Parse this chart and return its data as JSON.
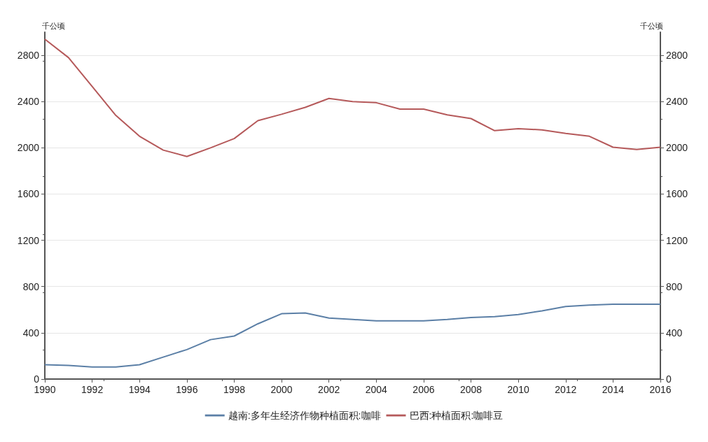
{
  "chart_data": {
    "type": "line",
    "ylabel": "千公顷",
    "y2label": "千公顷",
    "x": [
      1990,
      1991,
      1992,
      1993,
      1994,
      1995,
      1996,
      1997,
      1998,
      1999,
      2000,
      2001,
      2002,
      2003,
      2004,
      2005,
      2006,
      2007,
      2008,
      2009,
      2010,
      2011,
      2012,
      2013,
      2014,
      2015,
      2016
    ],
    "series": [
      {
        "name": "越南:多年生经济作物种植面积:咖啡",
        "color": "#5b7fa6",
        "values": [
          124,
          118,
          105,
          105,
          124,
          190,
          255,
          341,
          372,
          478,
          565,
          571,
          528,
          515,
          503,
          503,
          503,
          515,
          532,
          540,
          558,
          590,
          627,
          640,
          647,
          647,
          647
        ]
      },
      {
        "name": "巴西:种植面积:咖啡豆",
        "color": "#b5595a",
        "values": [
          2940,
          2780,
          2530,
          2280,
          2100,
          1980,
          1925,
          2000,
          2080,
          2235,
          2290,
          2350,
          2427,
          2400,
          2390,
          2335,
          2335,
          2285,
          2253,
          2148,
          2166,
          2155,
          2125,
          2100,
          2005,
          1986,
          2005
        ]
      }
    ],
    "xlim": [
      1990,
      2016
    ],
    "xticks": [
      1990,
      1992,
      1994,
      1996,
      1998,
      2000,
      2002,
      2004,
      2006,
      2008,
      2010,
      2012,
      2014,
      2016
    ],
    "ylim": [
      0,
      3000
    ],
    "yticks": [
      0,
      400,
      800,
      1200,
      1600,
      2000,
      2400,
      2800
    ],
    "y2lim": [
      0,
      3000
    ],
    "y2ticks": [
      0,
      400,
      800,
      1200,
      1600,
      2000,
      2400,
      2800
    ],
    "grid": "y",
    "legend": "bottom",
    "marker": "none",
    "line_style": "solid"
  }
}
